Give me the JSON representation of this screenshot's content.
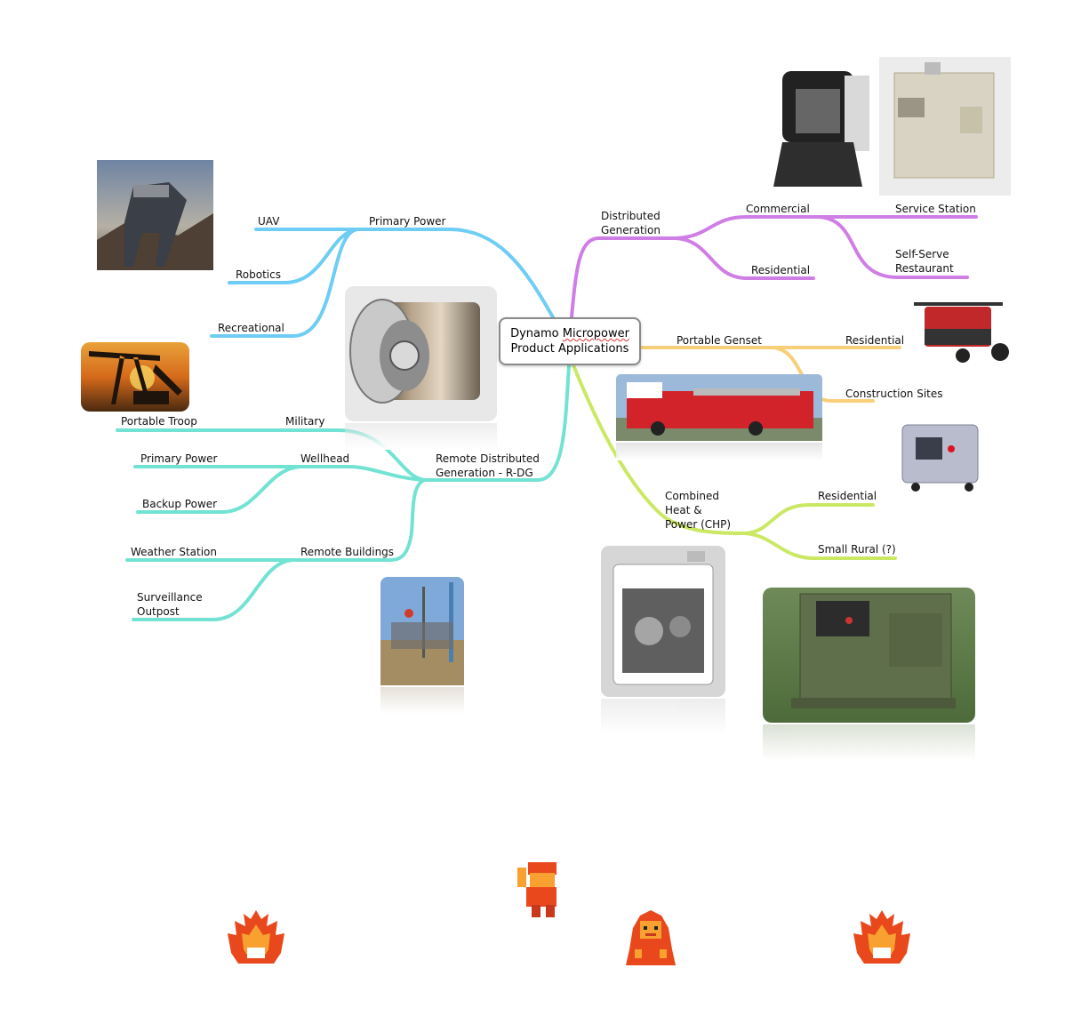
{
  "center": {
    "word1": "Dynamo",
    "word2": "Micropower",
    "line2": "Product Applications"
  },
  "colors": {
    "primary_power": "#6ecdf5",
    "distributed": "#cf7ee6",
    "genset": "#f8cf78",
    "chp": "#cbe864",
    "remote": "#72e3d3"
  },
  "branches": {
    "primary_power": {
      "label": "Primary Power",
      "children": [
        "UAV",
        "Robotics",
        "Recreational"
      ]
    },
    "distributed": {
      "label": "Distributed\nGeneration",
      "commercial": "Commercial",
      "commercial_children": [
        "Service Station",
        "Self-Serve\nRestaurant"
      ],
      "residential": "Residential"
    },
    "genset": {
      "label": "Portable Genset",
      "children": [
        "Residential",
        "Construction Sites"
      ]
    },
    "chp": {
      "label": "Combined\nHeat &\nPower (CHP)",
      "children": [
        "Residential",
        "Small Rural (?)"
      ]
    },
    "remote": {
      "label": "Remote Distributed\nGeneration - R-DG",
      "military": "Military",
      "military_children": [
        "Portable Troop"
      ],
      "wellhead": "Wellhead",
      "wellhead_children": [
        "Primary Power",
        "Backup Power"
      ],
      "buildings": "Remote Buildings",
      "buildings_children": [
        "Weather Station",
        "Surveillance\nOutpost"
      ]
    }
  },
  "images": [
    "robot-photo",
    "oil-pump-photo",
    "turbine-render",
    "wellhead-site-photo",
    "microturbine-unit-photo",
    "commercial-generator-photo",
    "portable-generator-photo",
    "fire-truck-photo",
    "silent-genset-photo",
    "chp-unit-photo",
    "military-genset-photo"
  ],
  "sprites": [
    "fire-sprite",
    "warrior-sprite",
    "old-man-sprite",
    "fire-sprite"
  ]
}
